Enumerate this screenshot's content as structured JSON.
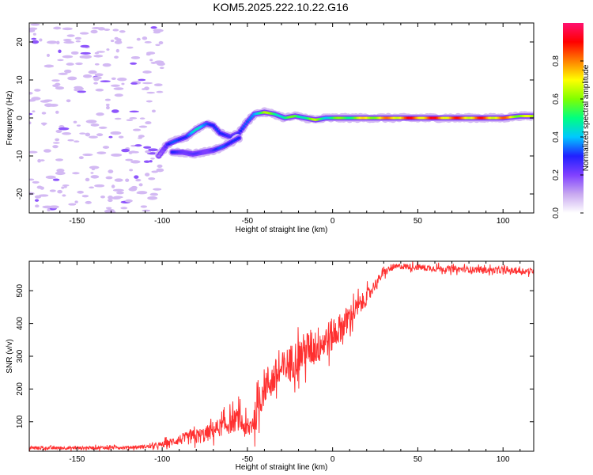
{
  "title": "KOM5.2025.222.10.22.G16",
  "chart_data": [
    {
      "type": "heatmap",
      "name": "spectrogram",
      "xlabel": "Height of straight line (km)",
      "ylabel": "Frequency (Hz)",
      "xlim": [
        -178,
        118
      ],
      "ylim": [
        -25,
        25
      ],
      "xticks": [
        -150,
        -100,
        -50,
        0,
        50,
        100
      ],
      "yticks": [
        -20,
        -10,
        0,
        10,
        20
      ],
      "colorbar": {
        "label": "Normalized spectral amplitude",
        "range": [
          0,
          1
        ],
        "ticks": [
          0.0,
          0.2,
          0.4,
          0.6,
          0.8
        ],
        "tick_labels": [
          "0.0",
          "0.2",
          "0.4",
          "0.6",
          "0.8"
        ],
        "colors": [
          "#ffffff",
          "#c8a8f0",
          "#8040ff",
          "#2020ff",
          "#00c8ff",
          "#00ff80",
          "#80ff00",
          "#ffff00",
          "#ff8000",
          "#ff0000",
          "#ff1070"
        ]
      },
      "ridge": [
        {
          "x": -102,
          "y": -10,
          "a": 0.2
        },
        {
          "x": -97,
          "y": -7,
          "a": 0.3
        },
        {
          "x": -92,
          "y": -6,
          "a": 0.35
        },
        {
          "x": -86,
          "y": -5,
          "a": 0.4
        },
        {
          "x": -80,
          "y": -3,
          "a": 0.45
        },
        {
          "x": -74,
          "y": -1.5,
          "a": 0.45
        },
        {
          "x": -70,
          "y": -2,
          "a": 0.35
        },
        {
          "x": -66,
          "y": -4,
          "a": 0.3
        },
        {
          "x": -60,
          "y": -5,
          "a": 0.35
        },
        {
          "x": -55,
          "y": -4,
          "a": 0.3
        },
        {
          "x": -50,
          "y": -1,
          "a": 0.35
        },
        {
          "x": -46,
          "y": 1,
          "a": 0.5
        },
        {
          "x": -40,
          "y": 1.5,
          "a": 0.65
        },
        {
          "x": -34,
          "y": 1,
          "a": 0.6
        },
        {
          "x": -28,
          "y": 0,
          "a": 0.55
        },
        {
          "x": -22,
          "y": 0.5,
          "a": 0.6
        },
        {
          "x": -16,
          "y": 0,
          "a": 0.6
        },
        {
          "x": -10,
          "y": -0.5,
          "a": 0.65
        },
        {
          "x": -4,
          "y": 0,
          "a": 0.55
        },
        {
          "x": 2,
          "y": 0,
          "a": 0.6
        },
        {
          "x": 10,
          "y": 0,
          "a": 0.65
        },
        {
          "x": 20,
          "y": 0,
          "a": 0.75
        },
        {
          "x": 30,
          "y": 0,
          "a": 0.8
        },
        {
          "x": 40,
          "y": 0,
          "a": 0.9
        },
        {
          "x": 50,
          "y": 0,
          "a": 0.92
        },
        {
          "x": 60,
          "y": 0,
          "a": 0.92
        },
        {
          "x": 70,
          "y": 0,
          "a": 0.9
        },
        {
          "x": 80,
          "y": 0,
          "a": 0.88
        },
        {
          "x": 90,
          "y": 0,
          "a": 0.9
        },
        {
          "x": 100,
          "y": 0,
          "a": 0.85
        },
        {
          "x": 110,
          "y": 0.5,
          "a": 0.75
        },
        {
          "x": 118,
          "y": 0.5,
          "a": 0.65
        }
      ],
      "lower_branch": [
        {
          "x": -94,
          "y": -9,
          "a": 0.3
        },
        {
          "x": -88,
          "y": -9,
          "a": 0.3
        },
        {
          "x": -82,
          "y": -9.5,
          "a": 0.25
        },
        {
          "x": -76,
          "y": -9,
          "a": 0.25
        },
        {
          "x": -70,
          "y": -8.5,
          "a": 0.3
        },
        {
          "x": -64,
          "y": -7.5,
          "a": 0.35
        },
        {
          "x": -58,
          "y": -6,
          "a": 0.4
        },
        {
          "x": -54,
          "y": -5,
          "a": 0.3
        }
      ],
      "noise_region_x": [
        -178,
        -100
      ]
    },
    {
      "type": "line",
      "name": "snr",
      "xlabel": "Height of straight line (km)",
      "ylabel": "SNR (v/v)",
      "xlim": [
        -178,
        118
      ],
      "ylim": [
        10,
        590
      ],
      "xticks": [
        -150,
        -100,
        -50,
        0,
        50,
        100
      ],
      "yticks": [
        100,
        200,
        300,
        400,
        500
      ],
      "series": [
        {
          "name": "SNR",
          "color": "#ff3030",
          "x": [
            -178,
            -150,
            -120,
            -105,
            -100,
            -95,
            -90,
            -85,
            -80,
            -75,
            -70,
            -65,
            -60,
            -55,
            -50,
            -45,
            -40,
            -35,
            -30,
            -25,
            -20,
            -15,
            -10,
            -5,
            0,
            5,
            10,
            15,
            20,
            25,
            30,
            35,
            40,
            50,
            60,
            70,
            80,
            90,
            100,
            110,
            118
          ],
          "y": [
            20,
            20,
            22,
            25,
            30,
            38,
            45,
            50,
            55,
            60,
            75,
            85,
            95,
            110,
            70,
            120,
            210,
            230,
            255,
            280,
            300,
            320,
            330,
            345,
            365,
            390,
            420,
            450,
            480,
            520,
            555,
            570,
            575,
            572,
            568,
            566,
            565,
            563,
            562,
            560,
            560
          ],
          "noise_amp": [
            6,
            6,
            6,
            8,
            12,
            15,
            20,
            25,
            30,
            30,
            35,
            35,
            40,
            45,
            40,
            60,
            70,
            70,
            70,
            70,
            70,
            75,
            75,
            70,
            65,
            55,
            50,
            40,
            30,
            20,
            15,
            12,
            12,
            12,
            12,
            12,
            12,
            12,
            12,
            12,
            12
          ]
        }
      ]
    }
  ]
}
